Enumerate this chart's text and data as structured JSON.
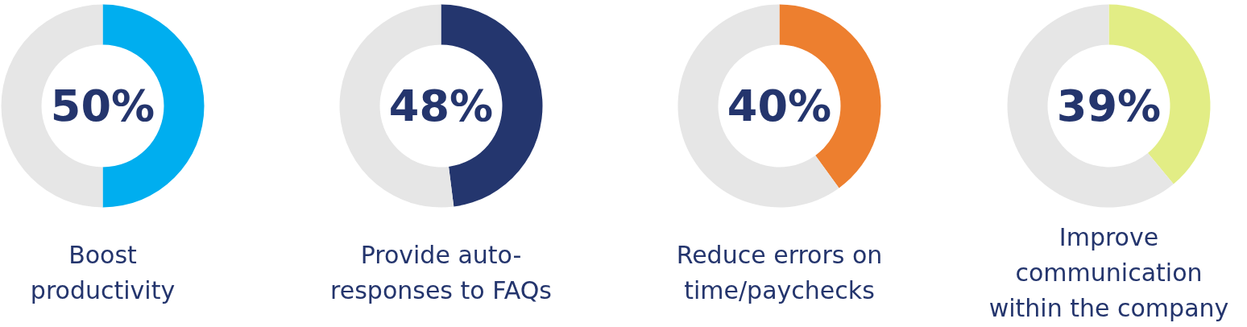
{
  "chart_data": [
    {
      "type": "donut",
      "title": "Boost\nproductivity",
      "categories": [
        null,
        null
      ],
      "values": [
        50,
        50
      ],
      "colors": [
        "#00aeef",
        "#e6e6e6"
      ],
      "annotations": [
        "50%"
      ]
    },
    {
      "type": "donut",
      "title": "Provide auto-\nresponses to FAQs",
      "categories": [
        null,
        null
      ],
      "values": [
        48,
        52
      ],
      "colors": [
        "#24366e",
        "#e6e6e6"
      ],
      "annotations": [
        "48%"
      ]
    },
    {
      "type": "donut",
      "title": "Reduce errors on\ntime/paychecks",
      "categories": [
        null,
        null
      ],
      "values": [
        40,
        60
      ],
      "colors": [
        "#ed7f2f",
        "#e6e6e6"
      ],
      "annotations": [
        "40%"
      ]
    },
    {
      "type": "donut",
      "title": "Improve\ncommunication\nwithin the company",
      "categories": [
        null,
        null
      ],
      "values": [
        39,
        61
      ],
      "colors": [
        "#e2ed85",
        "#e6e6e6"
      ],
      "annotations": [
        "39%"
      ]
    }
  ]
}
